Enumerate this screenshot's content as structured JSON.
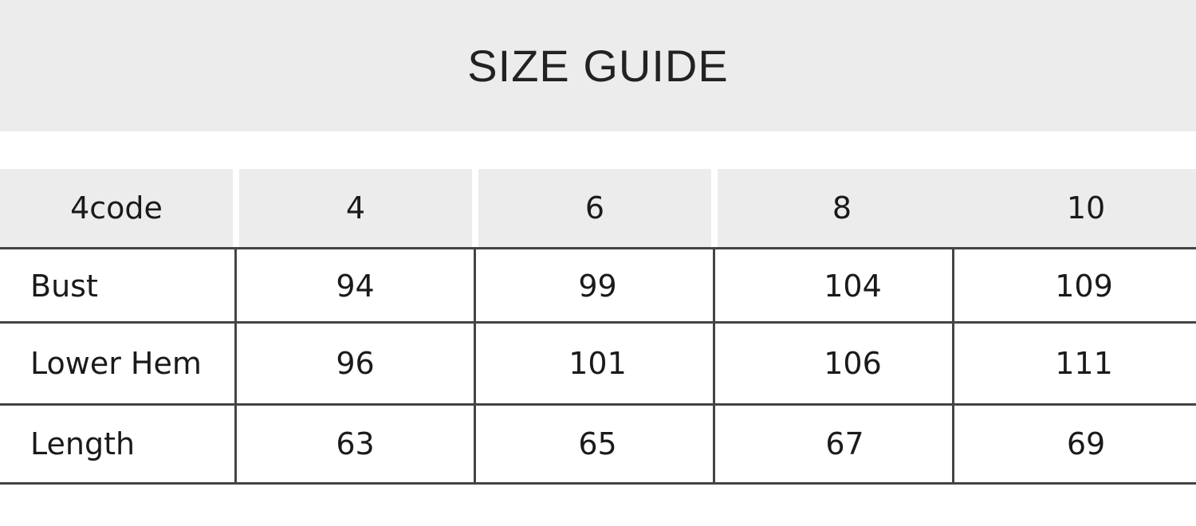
{
  "title": "SIZE GUIDE",
  "header": [
    "4code",
    "4",
    "6",
    "8",
    "10"
  ],
  "rows": [
    {
      "label": "Bust",
      "values": [
        "94",
        "99",
        "104",
        "109"
      ]
    },
    {
      "label": "Lower Hem",
      "values": [
        "96",
        "101",
        "106",
        "111"
      ]
    },
    {
      "label": "Length",
      "values": [
        "63",
        "65",
        "67",
        "69"
      ]
    }
  ],
  "colors": {
    "header_bg": "#ececec",
    "grid": "#444444"
  }
}
